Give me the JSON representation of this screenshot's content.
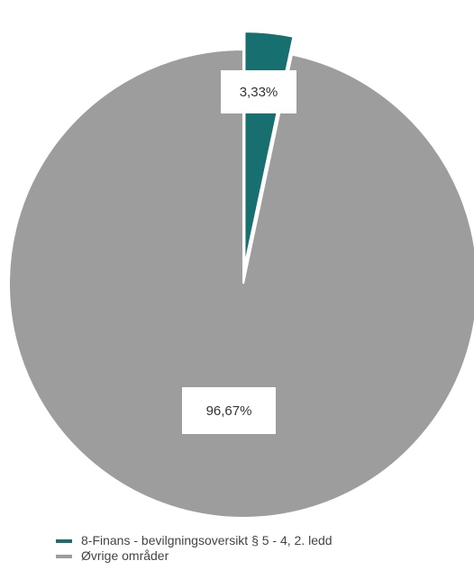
{
  "chart_data": {
    "type": "pie",
    "title": "",
    "series": [
      {
        "name": "8-Finans - bevilgningsoversikt § 5 - 4, 2. ledd",
        "value": 3.33,
        "label": "3,33%",
        "color": "#176f6f"
      },
      {
        "name": "Øvrige områder",
        "value": 96.67,
        "label": "96,67%",
        "color": "#9d9d9d"
      }
    ],
    "legend_position": "bottom",
    "exploded_slice": "8-Finans - bevilgningsoversikt § 5 - 4, 2. ledd"
  }
}
